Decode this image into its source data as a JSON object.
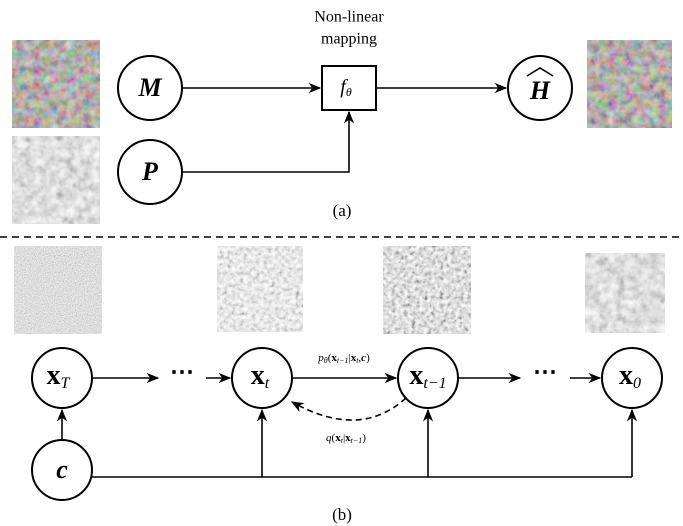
{
  "top_panel": {
    "annotation": [
      "Non-linear",
      "mapping"
    ],
    "nodes": [
      {
        "label": "M"
      },
      {
        "label": "P"
      },
      {
        "label": "f",
        "subscript": "θ"
      },
      {
        "label": "H"
      }
    ],
    "caption": "(a)"
  },
  "bottom_panel": {
    "nodes": [
      {
        "label": "x",
        "subscript": "T"
      },
      {
        "label": "⋯"
      },
      {
        "label": "x",
        "subscript": "t"
      },
      {
        "label": "x",
        "subscript": "t−1"
      },
      {
        "label": "⋯"
      },
      {
        "label": "x",
        "subscript": "0"
      },
      {
        "label": "c"
      }
    ],
    "edge_labels": [
      [
        "p",
        "θ",
        "(",
        "x",
        "t−1",
        "|",
        "x",
        "t",
        ",",
        "c",
        ")"
      ],
      [
        "q",
        "(",
        "x",
        "t",
        "|",
        "x",
        "t−1",
        ")"
      ]
    ],
    "caption": "(b)"
  }
}
